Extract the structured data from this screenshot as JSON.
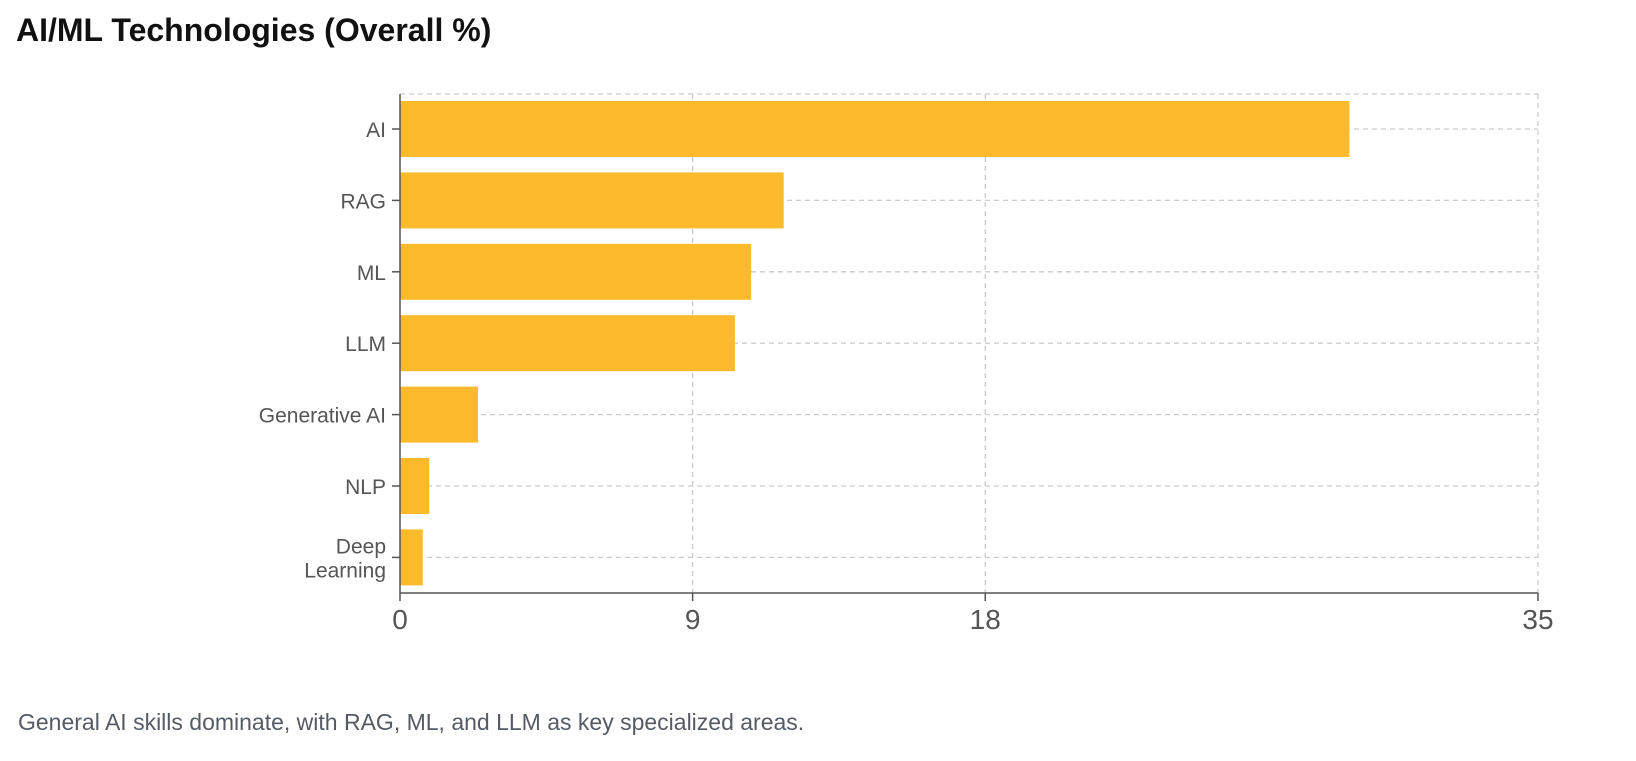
{
  "chart_data": {
    "type": "bar",
    "orientation": "horizontal",
    "title": "AI/ML Technologies (Overall %)",
    "caption": "General AI skills dominate, with RAG, ML, and LLM as key specialized areas.",
    "categories": [
      "AI",
      "RAG",
      "ML",
      "LLM",
      "Generative AI",
      "NLP",
      "Deep Learning"
    ],
    "values": [
      29.2,
      11.8,
      10.8,
      10.3,
      2.4,
      0.9,
      0.7
    ],
    "xticks": [
      0,
      9,
      18,
      35
    ],
    "xlim": [
      0,
      35
    ],
    "xlabel": "",
    "ylabel": "",
    "grid": true,
    "colors": {
      "bar": "#FDBA2C",
      "grid": "#cccccc",
      "axis": "#555555",
      "tick_text": "#555555"
    }
  }
}
